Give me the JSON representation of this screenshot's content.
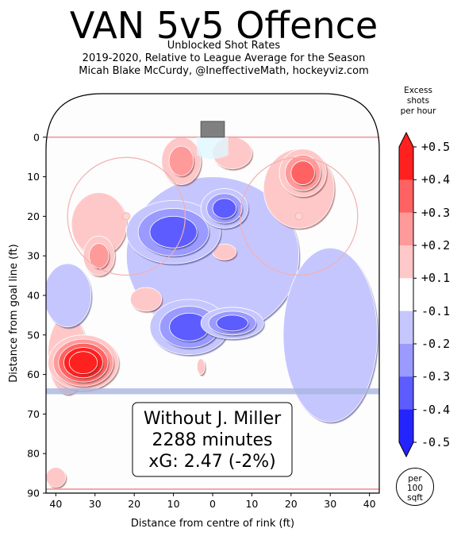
{
  "title": "VAN 5v5 Offence",
  "subtitle_lines": [
    "Unblocked Shot Rates",
    "2019-2020, Relative to League Average for the Season",
    "Micah Blake McCurdy, @IneffectiveMath, hockeyviz.com"
  ],
  "colorbar": {
    "title_lines": [
      "Excess",
      "shots",
      "per hour"
    ],
    "labels": [
      "+0.5",
      "+0.4",
      "+0.3",
      "+0.2",
      "+0.1",
      "-0.1",
      "-0.2",
      "-0.3",
      "-0.4",
      "-0.5"
    ],
    "colors": [
      "#ff2020",
      "#ff6262",
      "#ff9a9a",
      "#ffc8c8",
      "#ffffff",
      "#c6c6ff",
      "#9a9aff",
      "#5c5cff",
      "#2424ff"
    ],
    "unit_lines": [
      "per",
      "100",
      "sqft"
    ]
  },
  "annotation": {
    "player": "Without J. Miller",
    "minutes": "2288 minutes",
    "xg": "xG: 2.47 (-2%)"
  },
  "chart_data": {
    "type": "heatmap",
    "xlabel": "Distance from centre of rink (ft)",
    "ylabel": "Distance from goal line (ft)",
    "xlim": [
      -42.5,
      42.5
    ],
    "ylim": [
      90,
      -11
    ],
    "x_ticks": [
      {
        "value": -40,
        "label": "40"
      },
      {
        "value": -30,
        "label": "30"
      },
      {
        "value": -20,
        "label": "20"
      },
      {
        "value": -10,
        "label": "10"
      },
      {
        "value": 0,
        "label": "0"
      },
      {
        "value": 10,
        "label": "10"
      },
      {
        "value": 20,
        "label": "20"
      },
      {
        "value": 30,
        "label": "30"
      },
      {
        "value": 40,
        "label": "40"
      }
    ],
    "y_ticks": [
      0,
      10,
      20,
      30,
      40,
      50,
      60,
      70,
      80,
      90
    ],
    "color_range": [
      -0.5,
      0.5
    ],
    "blobs": [
      {
        "x": -33,
        "y": 57,
        "rx": 9,
        "ry": 7,
        "value": 0.5
      },
      {
        "x": -37,
        "y": 55,
        "rx": 5,
        "ry": 10,
        "value": 0.15
      },
      {
        "x": -40,
        "y": 86,
        "rx": 2.5,
        "ry": 2.5,
        "value": 0.15
      },
      {
        "x": -29,
        "y": 30,
        "rx": 4,
        "ry": 5,
        "value": 0.2
      },
      {
        "x": -29,
        "y": 22,
        "rx": 7,
        "ry": 8,
        "value": 0.15
      },
      {
        "x": -17,
        "y": 41,
        "rx": 4,
        "ry": 3,
        "value": 0.15
      },
      {
        "x": -8,
        "y": 6,
        "rx": 5,
        "ry": 6,
        "value": 0.2
      },
      {
        "x": 5,
        "y": 4,
        "rx": 5,
        "ry": 4,
        "value": 0.15
      },
      {
        "x": 3,
        "y": 29,
        "rx": 3,
        "ry": 2,
        "value": 0.15
      },
      {
        "x": 23,
        "y": 9,
        "rx": 6,
        "ry": 6,
        "value": 0.25
      },
      {
        "x": 22,
        "y": 13,
        "rx": 9,
        "ry": 10,
        "value": 0.15
      },
      {
        "x": -3,
        "y": 58,
        "rx": 1,
        "ry": 2,
        "value": 0.15
      },
      {
        "x": 3,
        "y": 18,
        "rx": 6,
        "ry": 5,
        "value": -0.35
      },
      {
        "x": -10,
        "y": 24,
        "rx": 12,
        "ry": 8,
        "value": -0.25
      },
      {
        "x": 5,
        "y": 47,
        "rx": 8,
        "ry": 4,
        "value": -0.35
      },
      {
        "x": -6,
        "y": 48,
        "rx": 10,
        "ry": 7,
        "value": -0.25
      },
      {
        "x": 0,
        "y": 30,
        "rx": 22,
        "ry": 20,
        "value": -0.15
      },
      {
        "x": 30,
        "y": 50,
        "rx": 12,
        "ry": 22,
        "value": -0.15
      },
      {
        "x": -37,
        "y": 40,
        "rx": 6,
        "ry": 8,
        "value": -0.15
      }
    ]
  }
}
